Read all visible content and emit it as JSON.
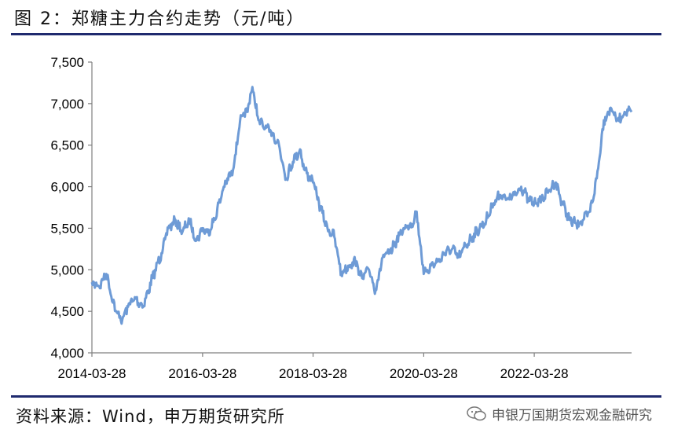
{
  "title": "图 2：郑糖主力合约走势（元/吨）",
  "source": "资料来源：Wind，申万期货研究所",
  "watermark": "申银万国期货宏观金融研究",
  "colors": {
    "line": "#6e9bd6",
    "rule": "#1f2a6e"
  },
  "chart_data": {
    "type": "line",
    "title": "",
    "xlabel": "",
    "ylabel": "",
    "ylim": [
      4000,
      7500
    ],
    "yticks": [
      "4,000",
      "4,500",
      "5,000",
      "5,500",
      "6,000",
      "6,500",
      "7,000",
      "7,500"
    ],
    "xticks": [
      "2014-03-28",
      "2016-03-28",
      "2018-03-28",
      "2020-03-28",
      "2022-03-28"
    ],
    "xlim": [
      "2014-03-28",
      "2023-12-31"
    ],
    "grid": false,
    "series": [
      {
        "name": "",
        "x": [
          "2014-03-28",
          "2014-05-15",
          "2014-07-01",
          "2014-09-01",
          "2014-10-15",
          "2014-12-01",
          "2015-01-15",
          "2015-03-01",
          "2015-05-01",
          "2015-07-01",
          "2015-08-15",
          "2015-10-01",
          "2015-11-15",
          "2016-01-01",
          "2016-02-15",
          "2016-03-28",
          "2016-05-01",
          "2016-06-15",
          "2016-08-15",
          "2016-10-15",
          "2016-12-01",
          "2017-01-15",
          "2017-02-20",
          "2017-04-01",
          "2017-05-15",
          "2017-07-01",
          "2017-08-15",
          "2017-10-01",
          "2017-11-15",
          "2018-01-01",
          "2018-02-01",
          "2018-03-28",
          "2018-05-15",
          "2018-07-01",
          "2018-08-15",
          "2018-10-01",
          "2018-11-15",
          "2019-01-01",
          "2019-02-15",
          "2019-04-01",
          "2019-05-15",
          "2019-07-01",
          "2019-08-15",
          "2019-10-01",
          "2019-11-15",
          "2020-01-10",
          "2020-02-10",
          "2020-03-28",
          "2020-05-15",
          "2020-07-01",
          "2020-08-15",
          "2020-10-01",
          "2020-11-15",
          "2021-01-01",
          "2021-02-15",
          "2021-04-01",
          "2021-05-15",
          "2021-07-01",
          "2021-08-15",
          "2021-10-01",
          "2021-11-15",
          "2022-01-01",
          "2022-02-15",
          "2022-03-28",
          "2022-05-15",
          "2022-07-01",
          "2022-08-15",
          "2022-10-01",
          "2022-11-15",
          "2023-01-01",
          "2023-02-15",
          "2023-04-01",
          "2023-05-15",
          "2023-07-01",
          "2023-08-15",
          "2023-10-01",
          "2023-11-15",
          "2023-12-31"
        ],
        "y": [
          4850,
          4800,
          4950,
          4500,
          4400,
          4600,
          4650,
          4550,
          4900,
          5200,
          5500,
          5600,
          5450,
          5600,
          5350,
          5500,
          5450,
          5600,
          6000,
          6200,
          6800,
          6900,
          7200,
          6800,
          6700,
          6650,
          6500,
          6100,
          6300,
          6450,
          6200,
          6050,
          5750,
          5500,
          5400,
          4950,
          5050,
          5100,
          4900,
          5000,
          4750,
          5150,
          5200,
          5350,
          5500,
          5550,
          5700,
          4950,
          5050,
          5100,
          5200,
          5250,
          5150,
          5300,
          5400,
          5500,
          5600,
          5800,
          5900,
          5850,
          5900,
          6000,
          5850,
          5800,
          5850,
          5950,
          6050,
          5800,
          5600,
          5550,
          5600,
          5700,
          6100,
          6800,
          6950,
          6800,
          6900,
          6900
        ]
      }
    ]
  }
}
